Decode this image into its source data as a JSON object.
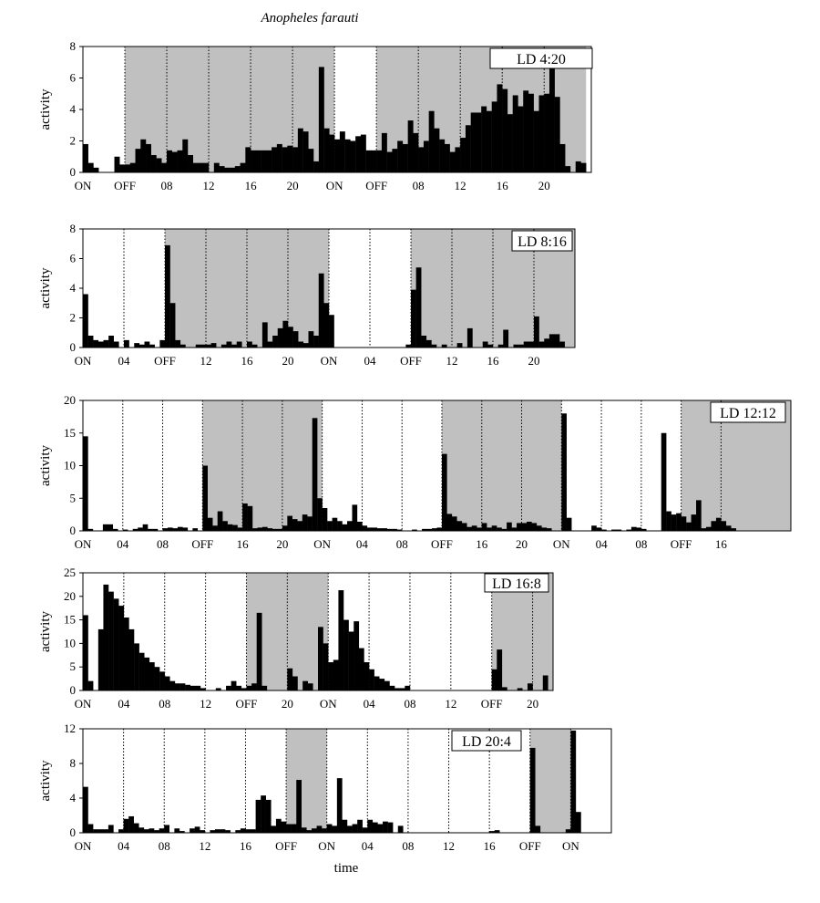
{
  "title": "Anopheles farauti",
  "xlabel": "time",
  "colors": {
    "dark": "#c0c0c0",
    "bar": "#000000",
    "frame": "#000000"
  },
  "chart_data": [
    {
      "type": "bar",
      "condition": "LD 4:20",
      "ylabel": "activity",
      "ylim": [
        0,
        8
      ],
      "yticks": [
        0,
        2,
        4,
        6,
        8
      ],
      "bin_hours": 0.5,
      "duration_hours": 48.5,
      "light_intervals_hours": [
        [
          0,
          4
        ],
        [
          24,
          28
        ],
        [
          48,
          48.5
        ]
      ],
      "tick_labels": [
        {
          "hour": 0,
          "label": "ON"
        },
        {
          "hour": 4,
          "label": "OFF"
        },
        {
          "hour": 8,
          "label": "08"
        },
        {
          "hour": 12,
          "label": "12"
        },
        {
          "hour": 16,
          "label": "16"
        },
        {
          "hour": 20,
          "label": "20"
        },
        {
          "hour": 24,
          "label": "ON"
        },
        {
          "hour": 28,
          "label": "OFF"
        },
        {
          "hour": 32,
          "label": "08"
        },
        {
          "hour": 36,
          "label": "12"
        },
        {
          "hour": 40,
          "label": "16"
        },
        {
          "hour": 44,
          "label": "20"
        }
      ],
      "values": [
        1.8,
        0.6,
        0.3,
        0,
        0,
        0,
        1.0,
        0.5,
        0.5,
        0.6,
        1.5,
        2.1,
        1.8,
        1.1,
        0.9,
        0.6,
        1.4,
        1.3,
        1.4,
        2.1,
        1.1,
        0.6,
        0.6,
        0.6,
        0,
        0.6,
        0.4,
        0.3,
        0.3,
        0.4,
        0.6,
        1.6,
        1.4,
        1.4,
        1.4,
        1.4,
        1.6,
        1.8,
        1.6,
        1.7,
        1.6,
        2.8,
        2.6,
        1.5,
        0.7,
        6.7,
        2.8,
        2.4,
        2.1,
        2.6,
        2.1,
        2.0,
        2.3,
        2.4,
        1.4,
        1.4,
        1.4,
        2.5,
        1.3,
        1.5,
        2.0,
        1.8,
        3.3,
        2.5,
        1.6,
        2.0,
        3.9,
        2.8,
        2.1,
        1.8,
        1.3,
        1.6,
        2.2,
        3.0,
        3.8,
        3.8,
        4.2,
        3.9,
        4.5,
        5.6,
        5.3,
        3.7,
        4.9,
        4.2,
        5.2,
        5.0,
        3.9,
        4.9,
        5.0,
        6.8,
        4.8,
        1.8,
        0.4,
        0,
        0.7,
        0.6,
        0
      ]
    },
    {
      "type": "bar",
      "condition": "LD 8:16",
      "ylabel": "activity",
      "ylim": [
        0,
        8
      ],
      "yticks": [
        0,
        2,
        4,
        6,
        8
      ],
      "bin_hours": 0.5,
      "duration_hours": 48,
      "light_intervals_hours": [
        [
          0,
          8
        ],
        [
          24,
          32
        ]
      ],
      "tick_labels": [
        {
          "hour": 0,
          "label": "ON"
        },
        {
          "hour": 4,
          "label": "04"
        },
        {
          "hour": 8,
          "label": "OFF"
        },
        {
          "hour": 12,
          "label": "12"
        },
        {
          "hour": 16,
          "label": "16"
        },
        {
          "hour": 20,
          "label": "20"
        },
        {
          "hour": 24,
          "label": "ON"
        },
        {
          "hour": 28,
          "label": "04"
        },
        {
          "hour": 32,
          "label": "OFF"
        },
        {
          "hour": 36,
          "label": "12"
        },
        {
          "hour": 40,
          "label": "16"
        },
        {
          "hour": 44,
          "label": "20"
        }
      ],
      "values": [
        3.6,
        0.8,
        0.5,
        0.4,
        0.5,
        0.8,
        0.4,
        0,
        0.5,
        0,
        0.3,
        0.2,
        0.4,
        0.2,
        0,
        0.5,
        6.9,
        3.0,
        0.5,
        0.2,
        0,
        0,
        0.2,
        0.2,
        0.2,
        0.3,
        0,
        0.2,
        0.4,
        0.2,
        0.4,
        0,
        0.4,
        0.2,
        0,
        1.7,
        0.4,
        0.8,
        1.3,
        1.8,
        1.4,
        1.1,
        0.4,
        0.3,
        1.1,
        0.8,
        5.0,
        3.0,
        2.2,
        0,
        0,
        0,
        0,
        0,
        0,
        0,
        0,
        0,
        0,
        0,
        0,
        0,
        0,
        0.2,
        3.9,
        5.4,
        0.8,
        0.5,
        0.2,
        0,
        0.2,
        0,
        0,
        0.3,
        0,
        1.3,
        0,
        0,
        0.4,
        0.2,
        0,
        0.2,
        1.2,
        0,
        0.2,
        0.2,
        0.4,
        0.4,
        2.1,
        0.4,
        0.6,
        0.9,
        0.9,
        0.4,
        0,
        0
      ]
    },
    {
      "type": "bar",
      "condition": "LD 12:12",
      "ylabel": "activity",
      "ylim": [
        0,
        20
      ],
      "yticks": [
        0,
        5,
        10,
        15,
        20
      ],
      "bin_hours": 0.5,
      "duration_hours": 71,
      "light_intervals_hours": [
        [
          0,
          12
        ],
        [
          24,
          36
        ],
        [
          48,
          60
        ]
      ],
      "tick_labels": [
        {
          "hour": 0,
          "label": "ON"
        },
        {
          "hour": 4,
          "label": "04"
        },
        {
          "hour": 8,
          "label": "08"
        },
        {
          "hour": 12,
          "label": "OFF"
        },
        {
          "hour": 16,
          "label": "16"
        },
        {
          "hour": 20,
          "label": "20"
        },
        {
          "hour": 24,
          "label": "ON"
        },
        {
          "hour": 28,
          "label": "04"
        },
        {
          "hour": 32,
          "label": "08"
        },
        {
          "hour": 36,
          "label": "OFF"
        },
        {
          "hour": 40,
          "label": "16"
        },
        {
          "hour": 44,
          "label": "20"
        },
        {
          "hour": 48,
          "label": "ON"
        },
        {
          "hour": 52,
          "label": "04"
        },
        {
          "hour": 56,
          "label": "08"
        },
        {
          "hour": 60,
          "label": "OFF"
        },
        {
          "hour": 64,
          "label": "16"
        }
      ],
      "values": [
        14.5,
        0.3,
        0,
        0,
        1.0,
        1.0,
        0.3,
        0,
        0.2,
        0,
        0.3,
        0.5,
        1.0,
        0.3,
        0.3,
        0,
        0.4,
        0.5,
        0.4,
        0.6,
        0.5,
        0,
        0.4,
        0,
        10.0,
        2.0,
        0.8,
        3.0,
        1.5,
        1.0,
        0.9,
        0.5,
        4.2,
        3.8,
        0.4,
        0.5,
        0.6,
        0.4,
        0.3,
        0.3,
        0.8,
        2.3,
        1.8,
        1.5,
        2.5,
        2.2,
        17.3,
        5.0,
        3.5,
        1.5,
        2.0,
        1.5,
        1.0,
        1.5,
        4.0,
        1.4,
        0.8,
        0.5,
        0.5,
        0.4,
        0.4,
        0.3,
        0.3,
        0.2,
        0,
        0,
        0.2,
        0,
        0.3,
        0.3,
        0.4,
        0.5,
        11.8,
        2.6,
        2.2,
        1.5,
        1.2,
        0.6,
        0.8,
        0.5,
        1.2,
        0.5,
        0.8,
        0.5,
        0.3,
        1.3,
        0.5,
        1.2,
        1.2,
        1.4,
        1.2,
        0.8,
        0.5,
        0.4,
        0,
        0,
        18.0,
        2.0,
        0,
        0,
        0,
        0,
        0.8,
        0.5,
        0.2,
        0,
        0.2,
        0.2,
        0,
        0.2,
        0.6,
        0.5,
        0.3,
        0,
        0,
        0,
        15.0,
        3.0,
        2.5,
        2.7,
        2.2,
        1.3,
        2.5,
        4.7,
        0.4,
        0.6,
        1.5,
        2.0,
        1.5,
        0.8,
        0.4,
        0,
        0,
        0,
        0,
        0,
        0,
        0
      ]
    },
    {
      "type": "bar",
      "condition": "LD 16:8",
      "ylabel": "activity",
      "ylim": [
        0,
        25
      ],
      "yticks": [
        0,
        5,
        10,
        15,
        20,
        25
      ],
      "bin_hours": 0.5,
      "duration_hours": 46,
      "light_intervals_hours": [
        [
          0,
          16
        ],
        [
          24,
          40
        ]
      ],
      "tick_labels": [
        {
          "hour": 0,
          "label": "ON"
        },
        {
          "hour": 4,
          "label": "04"
        },
        {
          "hour": 8,
          "label": "08"
        },
        {
          "hour": 12,
          "label": "12"
        },
        {
          "hour": 16,
          "label": "OFF"
        },
        {
          "hour": 20,
          "label": "20"
        },
        {
          "hour": 24,
          "label": "ON"
        },
        {
          "hour": 28,
          "label": "04"
        },
        {
          "hour": 32,
          "label": "08"
        },
        {
          "hour": 36,
          "label": "12"
        },
        {
          "hour": 40,
          "label": "OFF"
        },
        {
          "hour": 44,
          "label": "20"
        }
      ],
      "values": [
        16.0,
        2.0,
        0,
        13.0,
        22.5,
        21.0,
        19.5,
        18.0,
        15.5,
        13.0,
        10.0,
        8.0,
        7.0,
        6.0,
        5.0,
        4.0,
        3.0,
        2.0,
        1.5,
        1.5,
        1.2,
        1.0,
        1.0,
        0.5,
        0,
        0,
        0.5,
        0,
        1.0,
        2.0,
        1.0,
        0.5,
        1.0,
        1.5,
        16.5,
        1.0,
        0,
        0,
        0,
        0,
        4.7,
        3.0,
        0,
        2.0,
        1.5,
        0,
        13.5,
        10.0,
        6.0,
        6.5,
        21.3,
        15.0,
        12.5,
        14.7,
        9.0,
        6.0,
        4.5,
        3.0,
        2.5,
        2.0,
        1.0,
        0.5,
        0.5,
        1.0,
        0,
        0,
        0,
        0,
        0,
        0,
        0,
        0,
        0,
        0,
        0,
        0,
        0,
        0,
        0,
        0,
        4.5,
        8.7,
        0.7,
        0,
        0,
        0.5,
        0,
        1.5,
        0,
        0,
        3.2,
        0
      ]
    },
    {
      "type": "bar",
      "condition": "LD 20:4",
      "ylabel": "activity",
      "ylim": [
        0,
        12
      ],
      "yticks": [
        0,
        4,
        8,
        12
      ],
      "bin_hours": 0.5,
      "duration_hours": 52,
      "light_intervals_hours": [
        [
          0,
          20
        ],
        [
          24,
          44
        ],
        [
          48,
          52
        ]
      ],
      "tick_labels": [
        {
          "hour": 0,
          "label": "ON"
        },
        {
          "hour": 4,
          "label": "04"
        },
        {
          "hour": 8,
          "label": "08"
        },
        {
          "hour": 12,
          "label": "12"
        },
        {
          "hour": 16,
          "label": "16"
        },
        {
          "hour": 20,
          "label": "OFF"
        },
        {
          "hour": 24,
          "label": "ON"
        },
        {
          "hour": 28,
          "label": "04"
        },
        {
          "hour": 32,
          "label": "08"
        },
        {
          "hour": 36,
          "label": "12"
        },
        {
          "hour": 40,
          "label": "16"
        },
        {
          "hour": 44,
          "label": "OFF"
        },
        {
          "hour": 48,
          "label": "ON"
        }
      ],
      "values": [
        5.3,
        1.0,
        0.4,
        0.4,
        0.4,
        0.9,
        0,
        0.4,
        1.6,
        1.9,
        1.1,
        0.6,
        0.4,
        0.5,
        0.3,
        0.5,
        0.9,
        0,
        0.5,
        0.2,
        0,
        0.5,
        0.7,
        0.3,
        0,
        0.3,
        0.4,
        0.4,
        0.3,
        0,
        0.3,
        0.5,
        0.4,
        0.4,
        3.8,
        4.3,
        3.8,
        0.8,
        1.6,
        1.3,
        1.0,
        1.0,
        6.1,
        0.6,
        0.3,
        0.5,
        0.8,
        0.5,
        1.0,
        0.8,
        6.3,
        1.5,
        0.8,
        1.0,
        1.5,
        0.6,
        1.5,
        1.2,
        1.0,
        1.3,
        1.2,
        0,
        0.8,
        0,
        0,
        0,
        0,
        0,
        0,
        0,
        0,
        0,
        0,
        0,
        0,
        0,
        0,
        0,
        0,
        0,
        0.2,
        0.3,
        0,
        0,
        0,
        0,
        0,
        0,
        9.8,
        0.8,
        0,
        0,
        0,
        0,
        0,
        0.4,
        11.8,
        2.4
      ]
    }
  ]
}
